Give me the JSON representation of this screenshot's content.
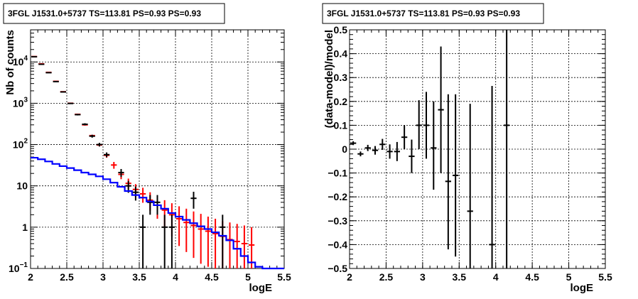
{
  "chart_data": [
    {
      "type": "histogram",
      "title": "3FGL J1531.0+5737 TS=113.81 PS=0.93 PS=0.93",
      "xlabel": "logE",
      "ylabel": "Nb of counts",
      "yscale": "log",
      "xlim": [
        2,
        5.5
      ],
      "ylim": [
        0.1,
        60000
      ],
      "grid": true,
      "x_ticks": [
        "2",
        "2.5",
        "3",
        "3.5",
        "4",
        "4.5",
        "5",
        "5.5"
      ],
      "y_ticks": [
        {
          "v": 0.1,
          "base": "10",
          "exp": "−1"
        },
        {
          "v": 1,
          "label": "1"
        },
        {
          "v": 10,
          "label": "10"
        },
        {
          "v": 100,
          "base": "10",
          "exp": "2"
        },
        {
          "v": 1000,
          "base": "10",
          "exp": "3"
        },
        {
          "v": 10000,
          "base": "10",
          "exp": "4"
        }
      ],
      "series": [
        {
          "color": "#ff0000",
          "style": "errorbars",
          "points": [
            {
              "x": 2.05,
              "y": 13500,
              "lo": 13500,
              "hi": 13500
            },
            {
              "x": 2.15,
              "y": 9000,
              "lo": 9000,
              "hi": 9000
            },
            {
              "x": 2.25,
              "y": 5600,
              "lo": 5600,
              "hi": 5600
            },
            {
              "x": 2.35,
              "y": 3400,
              "lo": 3400,
              "hi": 3400
            },
            {
              "x": 2.45,
              "y": 1900,
              "lo": 1900,
              "hi": 1900
            },
            {
              "x": 2.55,
              "y": 1000,
              "lo": 1000,
              "hi": 1000
            },
            {
              "x": 2.65,
              "y": 540,
              "lo": 540,
              "hi": 540
            },
            {
              "x": 2.75,
              "y": 300,
              "lo": 300,
              "hi": 300
            },
            {
              "x": 2.85,
              "y": 165,
              "lo": 165,
              "hi": 165
            },
            {
              "x": 2.95,
              "y": 98,
              "lo": 90,
              "hi": 106
            },
            {
              "x": 3.05,
              "y": 55,
              "lo": 48,
              "hi": 62
            },
            {
              "x": 3.15,
              "y": 32,
              "lo": 26,
              "hi": 38
            },
            {
              "x": 3.25,
              "y": 19,
              "lo": 14.5,
              "hi": 23.5
            },
            {
              "x": 3.35,
              "y": 11.5,
              "lo": 8.5,
              "hi": 15
            },
            {
              "x": 3.45,
              "y": 8.2,
              "lo": 5.4,
              "hi": 11
            },
            {
              "x": 3.55,
              "y": 6.4,
              "lo": 3.9,
              "hi": 9
            },
            {
              "x": 3.65,
              "y": 4.5,
              "lo": 2.5,
              "hi": 7
            },
            {
              "x": 3.75,
              "y": 3.4,
              "lo": 1.6,
              "hi": 5.5
            },
            {
              "x": 3.85,
              "y": 2.6,
              "lo": 1.0,
              "hi": 4.5
            },
            {
              "x": 3.95,
              "y": 2.0,
              "lo": 0.6,
              "hi": 3.8
            },
            {
              "x": 4.05,
              "y": 1.6,
              "lo": 0.35,
              "hi": 3.2
            },
            {
              "x": 4.15,
              "y": 1.3,
              "lo": 0.25,
              "hi": 2.8
            },
            {
              "x": 4.25,
              "y": 1.1,
              "lo": 0.18,
              "hi": 2.4
            },
            {
              "x": 4.35,
              "y": 0.9,
              "lo": 0.13,
              "hi": 2.1
            },
            {
              "x": 4.45,
              "y": 0.8,
              "lo": 0.11,
              "hi": 1.8
            },
            {
              "x": 4.55,
              "y": 0.7,
              "lo": 0.1,
              "hi": 1.6
            },
            {
              "x": 4.65,
              "y": 0.6,
              "lo": 0.1,
              "hi": 1.4
            },
            {
              "x": 4.75,
              "y": 0.5,
              "lo": 0.1,
              "hi": 1.3
            },
            {
              "x": 4.85,
              "y": 0.45,
              "lo": 0.1,
              "hi": 1.2
            },
            {
              "x": 4.95,
              "y": 0.4,
              "lo": 0.1,
              "hi": 1.1
            },
            {
              "x": 5.05,
              "y": 0.37,
              "lo": 0.1,
              "hi": 1.0
            }
          ]
        },
        {
          "color": "#000000",
          "style": "errorbars",
          "points": [
            {
              "x": 2.05,
              "y": 13400,
              "lo": 13300,
              "hi": 13500
            },
            {
              "x": 2.15,
              "y": 8800,
              "lo": 8700,
              "hi": 8900
            },
            {
              "x": 2.25,
              "y": 5500,
              "lo": 5430,
              "hi": 5570
            },
            {
              "x": 2.35,
              "y": 3350,
              "lo": 3290,
              "hi": 3410
            },
            {
              "x": 2.45,
              "y": 1880,
              "lo": 1840,
              "hi": 1920
            },
            {
              "x": 2.55,
              "y": 990,
              "lo": 960,
              "hi": 1020
            },
            {
              "x": 2.65,
              "y": 530,
              "lo": 507,
              "hi": 553
            },
            {
              "x": 2.75,
              "y": 310,
              "lo": 292,
              "hi": 328
            },
            {
              "x": 2.85,
              "y": 160,
              "lo": 147,
              "hi": 173
            },
            {
              "x": 2.95,
              "y": 100,
              "lo": 90,
              "hi": 110
            },
            {
              "x": 3.05,
              "y": 57,
              "lo": 49.5,
              "hi": 64.5
            },
            {
              "x": 3.25,
              "y": 21,
              "lo": 16.4,
              "hi": 25.6
            },
            {
              "x": 3.35,
              "y": 10,
              "lo": 6.8,
              "hi": 13.2
            },
            {
              "x": 3.45,
              "y": 7,
              "lo": 4.4,
              "hi": 9.6
            },
            {
              "x": 3.55,
              "y": 1,
              "lo": 0.1,
              "hi": 2
            },
            {
              "x": 3.65,
              "y": 4,
              "lo": 2,
              "hi": 6
            },
            {
              "x": 3.75,
              "y": 4,
              "lo": 2,
              "hi": 6
            },
            {
              "x": 3.85,
              "y": 1,
              "lo": 0.1,
              "hi": 2
            },
            {
              "x": 3.95,
              "y": 1,
              "lo": 0.1,
              "hi": 2
            },
            {
              "x": 4.25,
              "y": 5,
              "lo": 2.8,
              "hi": 7.2
            },
            {
              "x": 4.65,
              "y": 1,
              "lo": 0.1,
              "hi": 2
            }
          ]
        },
        {
          "color": "#0000ff",
          "style": "step",
          "edges": [
            2.0,
            2.1,
            2.2,
            2.3,
            2.4,
            2.5,
            2.6,
            2.7,
            2.8,
            2.9,
            3.0,
            3.1,
            3.2,
            3.3,
            3.4,
            3.5,
            3.6,
            3.7,
            3.8,
            3.9,
            4.0,
            4.1,
            4.2,
            4.3,
            4.4,
            4.5,
            4.6,
            4.7,
            4.8,
            4.9,
            5.0,
            5.1,
            5.2,
            5.5
          ],
          "values": [
            48,
            44,
            39,
            34,
            30,
            27,
            24,
            21,
            19,
            17,
            14.5,
            12,
            9.5,
            7.5,
            6,
            5.2,
            4.2,
            3.4,
            2.8,
            2.2,
            1.8,
            1.5,
            1.25,
            1.05,
            0.9,
            0.75,
            0.62,
            0.48,
            0.3,
            0.2,
            0.14,
            0.11,
            0.1
          ]
        }
      ]
    },
    {
      "type": "scatter",
      "title": "3FGL J1531.0+5737 TS=113.81 PS=0.93 PS=0.93",
      "xlabel": "logE",
      "ylabel": "(data-model)/model",
      "xlim": [
        2,
        5.5
      ],
      "ylim": [
        -0.5,
        0.5
      ],
      "grid": true,
      "x_ticks": [
        "2",
        "2.5",
        "3",
        "3.5",
        "4",
        "4.5",
        "5",
        "5.5"
      ],
      "y_ticks": [
        "−0.5",
        "−0.4",
        "−0.3",
        "−0.2",
        "−0.1",
        "0",
        "0.1",
        "0.2",
        "0.3",
        "0.4",
        "0.5"
      ],
      "y_tick_values": [
        -0.5,
        -0.4,
        -0.3,
        -0.2,
        -0.1,
        0,
        0.1,
        0.2,
        0.3,
        0.4,
        0.5
      ],
      "series": [
        {
          "color": "#000000",
          "style": "errorbars",
          "points": [
            {
              "x": 2.05,
              "y": 0.025,
              "lo": 0.017,
              "hi": 0.033
            },
            {
              "x": 2.15,
              "y": -0.02,
              "lo": -0.03,
              "hi": -0.01
            },
            {
              "x": 2.25,
              "y": 0.005,
              "lo": -0.008,
              "hi": 0.018
            },
            {
              "x": 2.35,
              "y": -0.005,
              "lo": -0.023,
              "hi": 0.013
            },
            {
              "x": 2.45,
              "y": 0.02,
              "lo": -0.003,
              "hi": 0.043
            },
            {
              "x": 2.55,
              "y": -0.01,
              "lo": -0.04,
              "hi": 0.02
            },
            {
              "x": 2.65,
              "y": -0.01,
              "lo": -0.05,
              "hi": 0.03
            },
            {
              "x": 2.75,
              "y": 0.05,
              "lo": 0.0,
              "hi": 0.1
            },
            {
              "x": 2.85,
              "y": -0.03,
              "lo": -0.1,
              "hi": 0.04
            },
            {
              "x": 2.95,
              "y": 0.1,
              "lo": 0.0,
              "hi": 0.205
            },
            {
              "x": 3.05,
              "y": 0.1,
              "lo": -0.04,
              "hi": 0.24
            },
            {
              "x": 3.15,
              "y": 0.005,
              "lo": -0.17,
              "hi": 0.2
            },
            {
              "x": 3.25,
              "y": 0.165,
              "lo": -0.1,
              "hi": 0.43
            },
            {
              "x": 3.35,
              "y": -0.135,
              "lo": -0.42,
              "hi": 0.23
            },
            {
              "x": 3.45,
              "y": -0.11,
              "lo": -0.45,
              "hi": 0.23
            },
            {
              "x": 3.65,
              "y": -0.26,
              "lo": -0.5,
              "hi": 0.19
            },
            {
              "x": 3.95,
              "y": -0.4,
              "lo": -0.5,
              "hi": 0.265
            },
            {
              "x": 4.15,
              "y": 0.1,
              "lo": -0.5,
              "hi": 0.5
            }
          ]
        }
      ]
    }
  ]
}
